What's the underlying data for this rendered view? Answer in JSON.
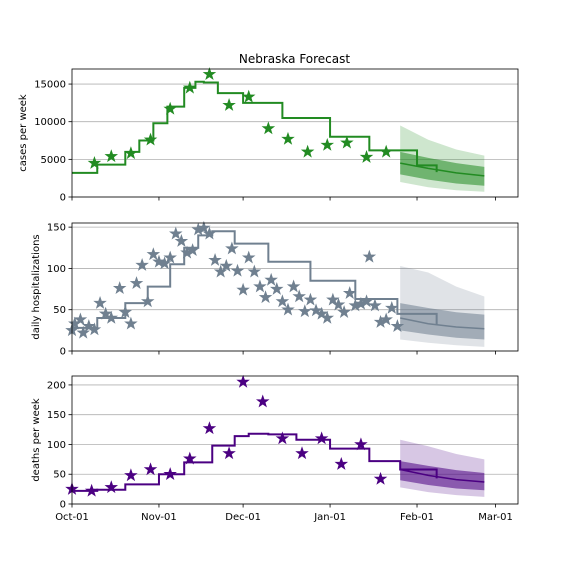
{
  "title": "Nebraska Forecast",
  "chart_data": [
    {
      "type": "line",
      "ylabel": "cases per week",
      "ylim": [
        0,
        17000
      ],
      "yticks": [
        0,
        5000,
        10000,
        15000
      ],
      "xlim": [
        "2020-10-01",
        "2021-03-09"
      ],
      "grid": "horizontal",
      "color": "#228b22",
      "model": [
        {
          "x": "2020-10-01",
          "y": 3200
        },
        {
          "x": "2020-10-10",
          "y": 4300
        },
        {
          "x": "2020-10-20",
          "y": 6000
        },
        {
          "x": "2020-10-25",
          "y": 7500
        },
        {
          "x": "2020-10-30",
          "y": 9800
        },
        {
          "x": "2020-11-04",
          "y": 12000
        },
        {
          "x": "2020-11-10",
          "y": 14500
        },
        {
          "x": "2020-11-14",
          "y": 15300
        },
        {
          "x": "2020-11-17",
          "y": 15200
        },
        {
          "x": "2020-11-22",
          "y": 13800
        },
        {
          "x": "2020-12-01",
          "y": 12500
        },
        {
          "x": "2020-12-15",
          "y": 10500
        },
        {
          "x": "2021-01-01",
          "y": 8000
        },
        {
          "x": "2021-01-15",
          "y": 6200
        },
        {
          "x": "2021-02-01",
          "y": 4200
        },
        {
          "x": "2021-02-08",
          "y": 3300
        }
      ],
      "observed": [
        {
          "x": "2020-10-09",
          "y": 4500
        },
        {
          "x": "2020-10-15",
          "y": 5400
        },
        {
          "x": "2020-10-22",
          "y": 5800
        },
        {
          "x": "2020-10-29",
          "y": 7600
        },
        {
          "x": "2020-11-05",
          "y": 11700
        },
        {
          "x": "2020-11-12",
          "y": 14500
        },
        {
          "x": "2020-11-19",
          "y": 16300
        },
        {
          "x": "2020-11-26",
          "y": 12200
        },
        {
          "x": "2020-12-03",
          "y": 13300
        },
        {
          "x": "2020-12-10",
          "y": 9100
        },
        {
          "x": "2020-12-17",
          "y": 7700
        },
        {
          "x": "2020-12-24",
          "y": 6000
        },
        {
          "x": "2020-12-31",
          "y": 6900
        },
        {
          "x": "2021-01-07",
          "y": 7200
        },
        {
          "x": "2021-01-14",
          "y": 5300
        },
        {
          "x": "2021-01-21",
          "y": 6000
        }
      ],
      "forecast": {
        "x": [
          "2021-01-26",
          "2021-02-05",
          "2021-02-15",
          "2021-02-25"
        ],
        "median": [
          4500,
          3800,
          3200,
          2800
        ],
        "band50": {
          "low": [
            3000,
            2300,
            1800,
            1500
          ],
          "high": [
            6000,
            5200,
            4500,
            4000
          ]
        },
        "band90": {
          "low": [
            2000,
            1300,
            900,
            700
          ],
          "high": [
            9500,
            7600,
            6300,
            5500
          ]
        }
      }
    },
    {
      "type": "line",
      "ylabel": "daily hospitalizations",
      "ylim": [
        0,
        155
      ],
      "yticks": [
        0,
        50,
        100,
        150
      ],
      "xlim": [
        "2020-10-01",
        "2021-03-09"
      ],
      "grid": "horizontal",
      "color": "#708090",
      "model": [
        {
          "x": "2020-10-01",
          "y": 28
        },
        {
          "x": "2020-10-10",
          "y": 40
        },
        {
          "x": "2020-10-20",
          "y": 58
        },
        {
          "x": "2020-10-28",
          "y": 78
        },
        {
          "x": "2020-11-05",
          "y": 105
        },
        {
          "x": "2020-11-10",
          "y": 125
        },
        {
          "x": "2020-11-15",
          "y": 140
        },
        {
          "x": "2020-11-20",
          "y": 145
        },
        {
          "x": "2020-11-28",
          "y": 130
        },
        {
          "x": "2020-12-10",
          "y": 108
        },
        {
          "x": "2020-12-25",
          "y": 85
        },
        {
          "x": "2021-01-10",
          "y": 63
        },
        {
          "x": "2021-01-25",
          "y": 45
        },
        {
          "x": "2021-02-08",
          "y": 32
        }
      ],
      "observed": [
        {
          "x": "2020-10-01",
          "y": 25
        },
        {
          "x": "2020-10-02",
          "y": 33
        },
        {
          "x": "2020-10-04",
          "y": 38
        },
        {
          "x": "2020-10-05",
          "y": 22
        },
        {
          "x": "2020-10-07",
          "y": 30
        },
        {
          "x": "2020-10-09",
          "y": 26
        },
        {
          "x": "2020-10-11",
          "y": 58
        },
        {
          "x": "2020-10-13",
          "y": 45
        },
        {
          "x": "2020-10-15",
          "y": 40
        },
        {
          "x": "2020-10-18",
          "y": 76
        },
        {
          "x": "2020-10-20",
          "y": 47
        },
        {
          "x": "2020-10-22",
          "y": 33
        },
        {
          "x": "2020-10-24",
          "y": 82
        },
        {
          "x": "2020-10-26",
          "y": 104
        },
        {
          "x": "2020-10-28",
          "y": 60
        },
        {
          "x": "2020-10-30",
          "y": 117
        },
        {
          "x": "2020-11-01",
          "y": 108
        },
        {
          "x": "2020-11-03",
          "y": 106
        },
        {
          "x": "2020-11-05",
          "y": 113
        },
        {
          "x": "2020-11-07",
          "y": 142
        },
        {
          "x": "2020-11-09",
          "y": 133
        },
        {
          "x": "2020-11-11",
          "y": 119
        },
        {
          "x": "2020-11-13",
          "y": 122
        },
        {
          "x": "2020-11-15",
          "y": 147
        },
        {
          "x": "2020-11-17",
          "y": 149
        },
        {
          "x": "2020-11-19",
          "y": 142
        },
        {
          "x": "2020-11-21",
          "y": 110
        },
        {
          "x": "2020-11-23",
          "y": 96
        },
        {
          "x": "2020-11-25",
          "y": 103
        },
        {
          "x": "2020-11-27",
          "y": 124
        },
        {
          "x": "2020-11-29",
          "y": 97
        },
        {
          "x": "2020-12-01",
          "y": 74
        },
        {
          "x": "2020-12-03",
          "y": 113
        },
        {
          "x": "2020-12-05",
          "y": 96
        },
        {
          "x": "2020-12-07",
          "y": 78
        },
        {
          "x": "2020-12-09",
          "y": 65
        },
        {
          "x": "2020-12-11",
          "y": 86
        },
        {
          "x": "2020-12-13",
          "y": 75
        },
        {
          "x": "2020-12-15",
          "y": 60
        },
        {
          "x": "2020-12-17",
          "y": 50
        },
        {
          "x": "2020-12-19",
          "y": 78
        },
        {
          "x": "2020-12-21",
          "y": 66
        },
        {
          "x": "2020-12-23",
          "y": 48
        },
        {
          "x": "2020-12-25",
          "y": 62
        },
        {
          "x": "2020-12-27",
          "y": 49
        },
        {
          "x": "2020-12-29",
          "y": 45
        },
        {
          "x": "2020-12-31",
          "y": 40
        },
        {
          "x": "2021-01-02",
          "y": 62
        },
        {
          "x": "2021-01-04",
          "y": 56
        },
        {
          "x": "2021-01-06",
          "y": 47
        },
        {
          "x": "2021-01-08",
          "y": 70
        },
        {
          "x": "2021-01-10",
          "y": 55
        },
        {
          "x": "2021-01-12",
          "y": 57
        },
        {
          "x": "2021-01-14",
          "y": 60
        },
        {
          "x": "2021-01-15",
          "y": 114
        },
        {
          "x": "2021-01-17",
          "y": 55
        },
        {
          "x": "2021-01-19",
          "y": 35
        },
        {
          "x": "2021-01-21",
          "y": 38
        },
        {
          "x": "2021-01-23",
          "y": 52
        },
        {
          "x": "2021-01-25",
          "y": 30
        }
      ],
      "forecast": {
        "x": [
          "2021-01-26",
          "2021-02-05",
          "2021-02-15",
          "2021-02-25"
        ],
        "median": [
          40,
          33,
          29,
          27
        ],
        "band50": {
          "low": [
            25,
            20,
            16,
            14
          ],
          "high": [
            58,
            52,
            47,
            44
          ]
        },
        "band90": {
          "low": [
            14,
            10,
            7,
            5
          ],
          "high": [
            103,
            95,
            78,
            66
          ]
        }
      }
    },
    {
      "type": "line",
      "ylabel": "deaths per week",
      "ylim": [
        0,
        215
      ],
      "yticks": [
        0,
        50,
        100,
        150,
        200
      ],
      "xlim": [
        "2020-10-01",
        "2021-03-09"
      ],
      "xticks": [
        "Oct-01",
        "Nov-01",
        "Dec-01",
        "Jan-01",
        "Feb-01",
        "Mar-01"
      ],
      "grid": "horizontal",
      "color": "#4b0082",
      "model": [
        {
          "x": "2020-10-01",
          "y": 22
        },
        {
          "x": "2020-10-10",
          "y": 24
        },
        {
          "x": "2020-10-20",
          "y": 33
        },
        {
          "x": "2020-11-01",
          "y": 50
        },
        {
          "x": "2020-11-10",
          "y": 70
        },
        {
          "x": "2020-11-20",
          "y": 98
        },
        {
          "x": "2020-11-28",
          "y": 114
        },
        {
          "x": "2020-12-03",
          "y": 118
        },
        {
          "x": "2020-12-10",
          "y": 117
        },
        {
          "x": "2020-12-20",
          "y": 108
        },
        {
          "x": "2021-01-01",
          "y": 93
        },
        {
          "x": "2021-01-15",
          "y": 72
        },
        {
          "x": "2021-01-26",
          "y": 58
        },
        {
          "x": "2021-02-08",
          "y": 43
        }
      ],
      "observed": [
        {
          "x": "2020-10-01",
          "y": 25
        },
        {
          "x": "2020-10-08",
          "y": 22
        },
        {
          "x": "2020-10-15",
          "y": 28
        },
        {
          "x": "2020-10-22",
          "y": 48
        },
        {
          "x": "2020-10-29",
          "y": 58
        },
        {
          "x": "2020-11-05",
          "y": 50
        },
        {
          "x": "2020-11-12",
          "y": 76
        },
        {
          "x": "2020-11-19",
          "y": 127
        },
        {
          "x": "2020-11-26",
          "y": 85
        },
        {
          "x": "2020-12-01",
          "y": 205
        },
        {
          "x": "2020-12-08",
          "y": 172
        },
        {
          "x": "2020-12-15",
          "y": 110
        },
        {
          "x": "2020-12-22",
          "y": 85
        },
        {
          "x": "2020-12-29",
          "y": 110
        },
        {
          "x": "2021-01-05",
          "y": 67
        },
        {
          "x": "2021-01-12",
          "y": 100
        },
        {
          "x": "2021-01-19",
          "y": 42
        }
      ],
      "forecast": {
        "x": [
          "2021-01-26",
          "2021-02-05",
          "2021-02-15",
          "2021-02-25"
        ],
        "median": [
          58,
          48,
          41,
          37
        ],
        "band50": {
          "low": [
            40,
            32,
            26,
            23
          ],
          "high": [
            72,
            64,
            57,
            52
          ]
        },
        "band90": {
          "low": [
            28,
            20,
            15,
            12
          ],
          "high": [
            108,
            97,
            84,
            75
          ]
        }
      }
    }
  ]
}
